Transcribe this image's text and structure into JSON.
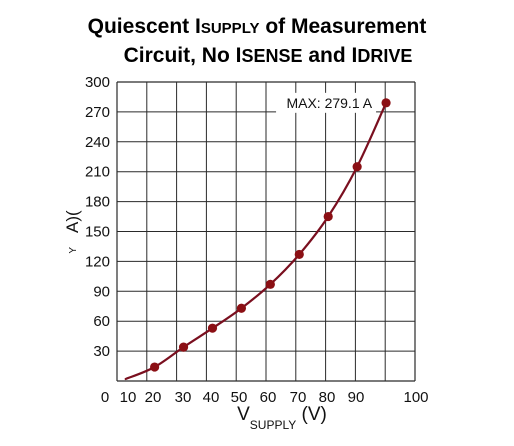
{
  "chart_data": {
    "type": "line",
    "title_line1": {
      "part1": "Quiescent I",
      "sub": "SUPPLY",
      "part2": " of Measurement"
    },
    "title_line2": {
      "part1": "Circuit, No I",
      "sub1": "SENSE",
      "part2": " and I",
      "sub2": "DRIVE"
    },
    "xlabel": {
      "main": "V",
      "sub": "SUPPLY",
      "unit": " (V)"
    },
    "ylabel": {
      "main": "A)(",
      "sub": "Y"
    },
    "xlim": [
      0,
      100
    ],
    "ylim": [
      0,
      300
    ],
    "x_ticks": [
      0,
      10,
      20,
      30,
      40,
      50,
      60,
      70,
      80,
      90,
      100
    ],
    "y_ticks": [
      30,
      60,
      90,
      120,
      150,
      180,
      210,
      240,
      270,
      300
    ],
    "grid": true,
    "series": [
      {
        "color": "#7a0f1f",
        "marker_color": "#8b0f14",
        "x": [
          0,
          10,
          20,
          30,
          40,
          50,
          60,
          70,
          80,
          90
        ],
        "y": [
          2,
          14,
          34,
          53,
          73,
          97,
          127,
          165,
          215,
          279.1
        ],
        "marker_x": [
          10,
          20,
          30,
          40,
          50,
          60,
          70,
          80,
          90
        ],
        "marker_y": [
          14,
          34,
          53,
          73,
          97,
          127,
          165,
          215,
          279.1
        ]
      }
    ],
    "annotations": [
      {
        "text": "MAX: 279.1 A",
        "x": 90,
        "y": 279.1
      }
    ]
  }
}
